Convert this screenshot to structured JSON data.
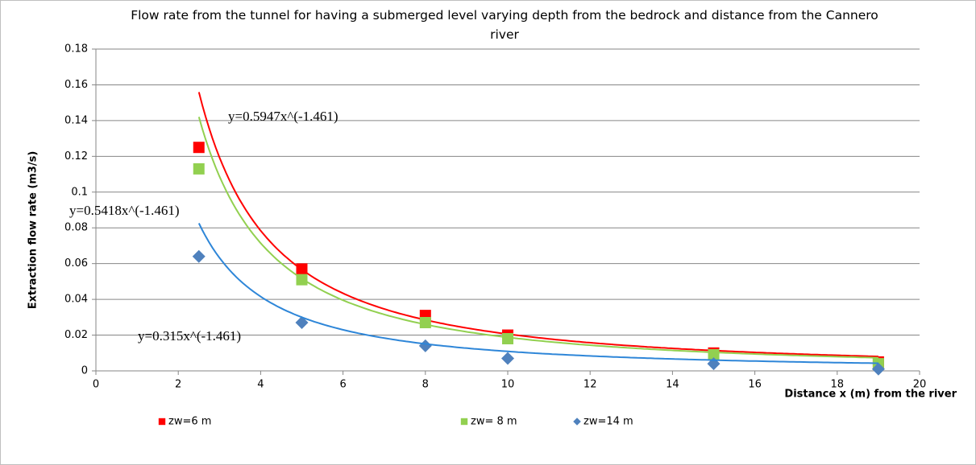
{
  "chart_data": {
    "type": "scatter",
    "title": "Flow rate from the tunnel for having a submerged level varying depth from the bedrock and distance from the Cannero river",
    "x_label": "Distance x (m) from the river",
    "y_label": "Extraction flow rate (m3/s)",
    "xlim": [
      0,
      20
    ],
    "xticks": [
      0,
      2,
      4,
      6,
      8,
      10,
      12,
      14,
      16,
      18,
      20
    ],
    "ylim": [
      0,
      0.18
    ],
    "yticks": [
      0,
      0.02,
      0.04,
      0.06,
      0.08,
      0.1,
      0.12,
      0.14,
      0.16,
      0.18
    ],
    "grid": true,
    "series": [
      {
        "name": "zw=6 m",
        "color": "#ff0000",
        "marker": "square",
        "x": [
          2.5,
          5,
          8,
          10,
          15,
          19
        ],
        "values": [
          0.125,
          0.057,
          0.031,
          0.02,
          0.01,
          0.005
        ],
        "trendline": {
          "coefficient": 0.5947,
          "exponent": -1.461,
          "color": "#ff0000",
          "label": "y=0.5947x^(-1.461)",
          "label_color": "#ff0000"
        }
      },
      {
        "name": "zw= 8 m",
        "color": "#92d050",
        "marker": "square",
        "x": [
          2.5,
          5,
          8,
          10,
          15,
          19
        ],
        "values": [
          0.113,
          0.051,
          0.027,
          0.018,
          0.009,
          0.004
        ],
        "trendline": {
          "coefficient": 0.5418,
          "exponent": -1.461,
          "color": "#92d050",
          "label": "y=0.5418x^(-1.461)",
          "label_color": "#22dd22"
        }
      },
      {
        "name": "zw=14 m",
        "color": "#4f81bd",
        "marker": "diamond",
        "x": [
          2.5,
          5,
          8,
          10,
          15,
          19
        ],
        "values": [
          0.064,
          0.027,
          0.014,
          0.007,
          0.004,
          0.001
        ],
        "trendline": {
          "coefficient": 0.315,
          "exponent": -1.461,
          "color": "#2e86d8",
          "label": "y=0.315x^(-1.461)",
          "label_color": "#00b0f0"
        }
      }
    ]
  }
}
